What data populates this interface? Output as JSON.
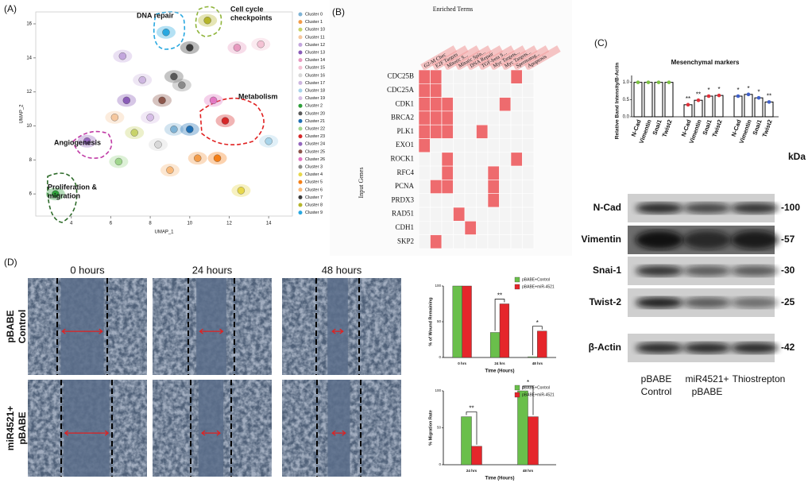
{
  "panels": [
    "(A)",
    "(B)",
    "(C)",
    "(D)"
  ],
  "chart_data": [
    {
      "type": "scatter",
      "xlabel": "UMAP_1",
      "ylabel": "UMAP_2",
      "xlim": [
        2.2,
        15.2
      ],
      "xticks": [
        4,
        6,
        8,
        10,
        12,
        14
      ],
      "ylim": [
        4.7,
        16.7
      ],
      "yticks": [
        6,
        8,
        10,
        12,
        14,
        16
      ],
      "series": [
        {
          "name": "Cluster 0",
          "color": "#7fb3d5",
          "x": [
            9.2
          ],
          "y": [
            9.8
          ]
        },
        {
          "name": "Cluster 1",
          "color": "#f39c4a",
          "x": [
            10.4
          ],
          "y": [
            8.1
          ]
        },
        {
          "name": "Cluster 10",
          "color": "#c8d36a",
          "x": [
            7.2
          ],
          "y": [
            9.6
          ]
        },
        {
          "name": "Cluster 11",
          "color": "#f6c89f",
          "x": [
            6.2
          ],
          "y": [
            10.5
          ]
        },
        {
          "name": "Cluster 12",
          "color": "#c3a6dd",
          "x": [
            6.6
          ],
          "y": [
            14.1
          ]
        },
        {
          "name": "Cluster 13",
          "color": "#8a5cb8",
          "x": [
            6.8
          ],
          "y": [
            11.5
          ]
        },
        {
          "name": "Cluster 14",
          "color": "#e89ac0",
          "x": [
            12.4
          ],
          "y": [
            14.6
          ]
        },
        {
          "name": "Cluster 15",
          "color": "#f4c2d4",
          "x": [
            13.6
          ],
          "y": [
            14.8
          ]
        },
        {
          "name": "Cluster 16",
          "color": "#d8d8d8",
          "x": [
            8.4
          ],
          "y": [
            8.9
          ]
        },
        {
          "name": "Cluster 17",
          "color": "#cdb6e0",
          "x": [
            7.6
          ],
          "y": [
            12.7
          ]
        },
        {
          "name": "Cluster 18",
          "color": "#a8d4ea",
          "x": [
            14.0
          ],
          "y": [
            9.1
          ]
        },
        {
          "name": "Cluster 19",
          "color": "#d6bde6",
          "x": [
            8.0
          ],
          "y": [
            10.5
          ]
        },
        {
          "name": "Cluster 2",
          "color": "#2e9e3a",
          "x": [
            3.2
          ],
          "y": [
            6.0
          ]
        },
        {
          "name": "Cluster 20",
          "color": "#5a5a5a",
          "x": [
            9.2
          ],
          "y": [
            12.9
          ]
        },
        {
          "name": "Cluster 21",
          "color": "#1f6fb4",
          "x": [
            10.0
          ],
          "y": [
            9.8
          ]
        },
        {
          "name": "Cluster 22",
          "color": "#9fd68c",
          "x": [
            6.4
          ],
          "y": [
            7.9
          ]
        },
        {
          "name": "Cluster 23",
          "color": "#d62728",
          "x": [
            11.8
          ],
          "y": [
            10.3
          ]
        },
        {
          "name": "Cluster 24",
          "color": "#9467bd",
          "x": [
            4.8
          ],
          "y": [
            9.1
          ]
        },
        {
          "name": "Cluster 25",
          "color": "#8c564b",
          "x": [
            8.6
          ],
          "y": [
            11.5
          ]
        },
        {
          "name": "Cluster 26",
          "color": "#e377c2",
          "x": [
            11.2
          ],
          "y": [
            11.5
          ]
        },
        {
          "name": "Cluster 3",
          "color": "#8a8a8a",
          "x": [
            9.6
          ],
          "y": [
            12.4
          ]
        },
        {
          "name": "Cluster 4",
          "color": "#e8d84a",
          "x": [
            12.6
          ],
          "y": [
            6.2
          ]
        },
        {
          "name": "Cluster 5",
          "color": "#f57f17",
          "x": [
            11.4
          ],
          "y": [
            8.1
          ]
        },
        {
          "name": "Cluster 6",
          "color": "#f9b97a",
          "x": [
            9.0
          ],
          "y": [
            7.4
          ]
        },
        {
          "name": "Cluster 7",
          "color": "#3a3a3a",
          "x": [
            10.0
          ],
          "y": [
            14.6
          ]
        },
        {
          "name": "Cluster 8",
          "color": "#b5b52a",
          "x": [
            10.9
          ],
          "y": [
            16.2
          ]
        },
        {
          "name": "Cluster 9",
          "color": "#29a8e0",
          "x": [
            8.8
          ],
          "y": [
            15.5
          ]
        }
      ],
      "annotations": [
        {
          "lines": [
            "DNA repair"
          ],
          "color": "#29a8e0"
        },
        {
          "lines": [
            "Cell cycle",
            "checkpoints"
          ],
          "color": "#8fb43a"
        },
        {
          "lines": [
            "Metabolism"
          ],
          "color": "#e02020"
        },
        {
          "lines": [
            "Angiogenesis"
          ],
          "color": "#c03aa5"
        },
        {
          "lines": [
            "Proliferation &",
            "migration"
          ],
          "color": "#2e6b2a"
        }
      ]
    },
    {
      "type": "heatmap",
      "title": "Enriched Terms",
      "ylabel": "Input Genes",
      "color": "#ee6b6e",
      "columns": [
        "G2-M Chec",
        "E2F Targets",
        "Mitotic S...",
        "Mitotic Spin...",
        "DNA Repair",
        "TGF-beta S...",
        "Myc Targets...",
        "Myc Targets...",
        "Spermatog...",
        "Apoptosis"
      ],
      "rows": [
        "CDC25B",
        "CDC25A",
        "CDK1",
        "BRCA2",
        "PLK1",
        "EXO1",
        "ROCK1",
        "RFC4",
        "PCNA",
        "PRDX3",
        "RAD51",
        "CDH1",
        "SKP2"
      ],
      "values": [
        [
          1,
          1,
          0,
          0,
          0,
          0,
          0,
          0,
          1,
          0
        ],
        [
          1,
          1,
          0,
          0,
          0,
          0,
          0,
          0,
          0,
          0
        ],
        [
          1,
          1,
          1,
          0,
          0,
          0,
          0,
          1,
          0,
          0
        ],
        [
          1,
          1,
          1,
          0,
          0,
          0,
          0,
          0,
          0,
          0
        ],
        [
          1,
          1,
          1,
          0,
          0,
          1,
          0,
          0,
          0,
          0
        ],
        [
          1,
          0,
          0,
          0,
          0,
          0,
          0,
          0,
          0,
          0
        ],
        [
          0,
          0,
          1,
          0,
          0,
          0,
          0,
          0,
          1,
          0
        ],
        [
          0,
          0,
          1,
          0,
          0,
          0,
          1,
          0,
          0,
          0
        ],
        [
          0,
          1,
          1,
          0,
          0,
          0,
          1,
          0,
          0,
          0
        ],
        [
          0,
          0,
          0,
          0,
          0,
          0,
          1,
          0,
          0,
          0
        ],
        [
          0,
          0,
          0,
          1,
          0,
          0,
          0,
          0,
          0,
          0
        ],
        [
          0,
          0,
          0,
          0,
          1,
          0,
          0,
          0,
          0,
          0
        ],
        [
          0,
          1,
          0,
          0,
          0,
          0,
          0,
          0,
          0,
          0
        ]
      ]
    },
    {
      "type": "bar",
      "title": "Mesenchymal markers",
      "ylabel": "Relative Band Intensity/B-Actin",
      "categories": [
        "N-Cad",
        "Vimentin",
        "Snai1",
        "Twist2"
      ],
      "ylim": [
        0,
        1.2
      ],
      "yticks": [
        {
          "value": 0,
          "label": "0.0"
        },
        {
          "value": 0.5,
          "label": "0.5"
        },
        {
          "value": 1,
          "label": "1.0"
        }
      ],
      "groups": [
        {
          "color": "#7cc242",
          "values": [
            1,
            1,
            1,
            1
          ],
          "significance": [
            null,
            null,
            null,
            null
          ]
        },
        {
          "color": "#e0303a",
          "values": [
            0.35,
            0.48,
            0.6,
            0.62
          ],
          "significance": [
            "**",
            "**",
            "*",
            "*"
          ]
        },
        {
          "color": "#3f5fc8",
          "values": [
            0.6,
            0.65,
            0.55,
            0.43
          ],
          "significance": [
            "*",
            "*",
            "*",
            "**"
          ]
        }
      ]
    },
    {
      "type": "bar",
      "ylabel": "% of Wound Remaining",
      "xlabel": "Time (Hours)",
      "categories": [
        "0 hrs",
        "24 hrs",
        "48 hrs"
      ],
      "ylim": [
        0,
        100
      ],
      "yticks": [
        0,
        50,
        100
      ],
      "series": [
        {
          "name": "pBABE+Control",
          "color": "#6abf4b",
          "values": [
            100,
            35,
            1
          ]
        },
        {
          "name": "pBABE+miR-4521",
          "color": "#e5262b",
          "values": [
            100,
            75,
            37
          ]
        }
      ],
      "significance": [
        null,
        "**",
        "*"
      ]
    },
    {
      "type": "bar",
      "ylabel": "% Migration Rate",
      "xlabel": "Time (Hours)",
      "categories": [
        "24 hrs",
        "48 hrs"
      ],
      "ylim": [
        0,
        100
      ],
      "yticks": [
        0,
        50,
        100
      ],
      "series": [
        {
          "name": "pBABE+Control",
          "color": "#6abf4b",
          "values": [
            65,
            100
          ]
        },
        {
          "name": "pBABE+miR-4521",
          "color": "#e5262b",
          "values": [
            25,
            65
          ]
        }
      ],
      "significance": [
        "**",
        "*"
      ]
    }
  ],
  "blot": {
    "rows": [
      "N-Cad",
      "Vimentin",
      "Snai-1",
      "Twist-2",
      "β-Actin"
    ],
    "kda_header": "kDa",
    "kda": [
      "-100",
      "-57",
      "-30",
      "-25",
      "-42"
    ],
    "groups": [
      [
        "pBABE",
        "Control"
      ],
      [
        "miR4521+",
        "pBABE"
      ],
      [
        "Thiostrepton"
      ]
    ]
  },
  "wound": {
    "times": [
      "0 hours",
      "24 hours",
      "48 hours"
    ],
    "rows": [
      [
        "pBABE",
        "Control"
      ],
      [
        "miR4521+",
        "pBABE"
      ]
    ]
  }
}
